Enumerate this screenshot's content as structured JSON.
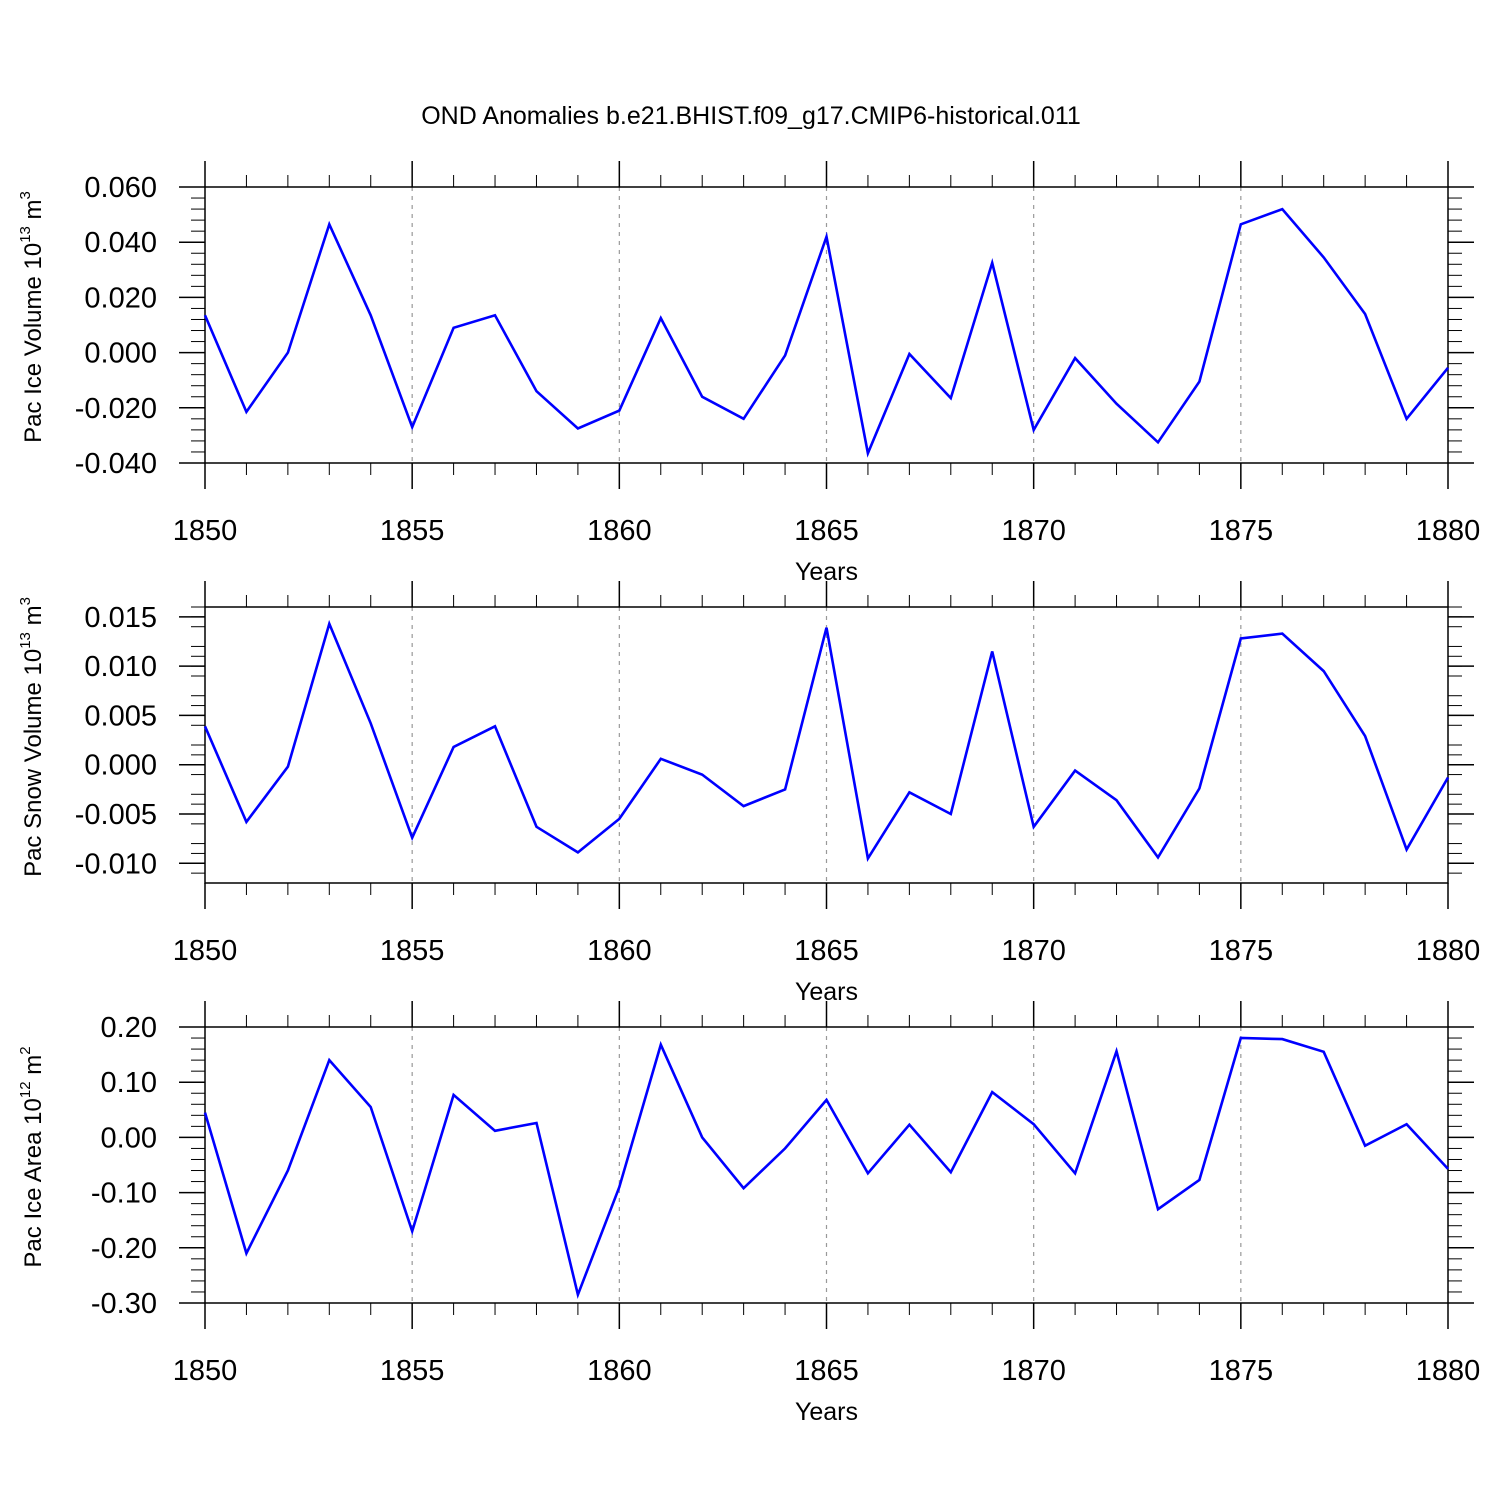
{
  "title": "OND Anomalies b.e21.BHIST.f09_g17.CMIP6-historical.011",
  "colors": {
    "series": "#0000ff",
    "axis": "#000000",
    "gridline": "#999999"
  },
  "chart_data": [
    {
      "type": "line",
      "ylabel": {
        "main": "Pac Ice Volume 10",
        "exp": "13",
        "unit": " m",
        "unit_exp": "3"
      },
      "xlabel": "Years",
      "xlim": [
        1850,
        1880
      ],
      "ylim": [
        -0.04,
        0.06
      ],
      "xticks": [
        1850,
        1855,
        1860,
        1865,
        1870,
        1875,
        1880
      ],
      "xtick_labels": [
        "1850",
        "1855",
        "1860",
        "1865",
        "1870",
        "1875",
        "1880"
      ],
      "yticks": [
        -0.04,
        -0.02,
        0.0,
        0.02,
        0.04,
        0.06
      ],
      "ytick_labels": [
        "-0.040",
        "-0.020",
        "0.000",
        "0.020",
        "0.040",
        "0.060"
      ],
      "vlines": [
        1855,
        1860,
        1865,
        1870,
        1875
      ],
      "x": [
        1850,
        1851,
        1852,
        1853,
        1854,
        1855,
        1856,
        1857,
        1858,
        1859,
        1860,
        1861,
        1862,
        1863,
        1864,
        1865,
        1866,
        1867,
        1868,
        1869,
        1870,
        1871,
        1872,
        1873,
        1874,
        1875,
        1876,
        1877,
        1878,
        1879,
        1880
      ],
      "values": [
        0.0135,
        -0.0215,
        0.0,
        0.0465,
        0.0135,
        -0.027,
        0.009,
        0.0135,
        -0.014,
        -0.0275,
        -0.021,
        0.0125,
        -0.016,
        -0.024,
        -0.001,
        0.042,
        -0.0365,
        -0.0005,
        -0.0165,
        0.0325,
        -0.028,
        -0.002,
        -0.0185,
        -0.0325,
        -0.0105,
        0.0465,
        0.052,
        0.0345,
        0.014,
        -0.024,
        -0.0055
      ]
    },
    {
      "type": "line",
      "ylabel": {
        "main": "Pac Snow Volume 10",
        "exp": "13",
        "unit": " m",
        "unit_exp": "3"
      },
      "xlabel": "Years",
      "xlim": [
        1850,
        1880
      ],
      "ylim": [
        -0.012,
        0.016
      ],
      "xticks": [
        1850,
        1855,
        1860,
        1865,
        1870,
        1875,
        1880
      ],
      "xtick_labels": [
        "1850",
        "1855",
        "1860",
        "1865",
        "1870",
        "1875",
        "1880"
      ],
      "yticks": [
        -0.01,
        -0.005,
        0.0,
        0.005,
        0.01,
        0.015
      ],
      "ytick_labels": [
        "-0.010",
        "-0.005",
        "0.000",
        "0.005",
        "0.010",
        "0.015"
      ],
      "vlines": [
        1855,
        1860,
        1865,
        1870,
        1875
      ],
      "x": [
        1850,
        1851,
        1852,
        1853,
        1854,
        1855,
        1856,
        1857,
        1858,
        1859,
        1860,
        1861,
        1862,
        1863,
        1864,
        1865,
        1866,
        1867,
        1868,
        1869,
        1870,
        1871,
        1872,
        1873,
        1874,
        1875,
        1876,
        1877,
        1878,
        1879,
        1880
      ],
      "values": [
        0.0039,
        -0.0058,
        -0.0002,
        0.0143,
        0.0042,
        -0.0074,
        0.0018,
        0.0039,
        -0.0063,
        -0.0089,
        -0.0055,
        0.0006,
        -0.001,
        -0.0042,
        -0.0025,
        0.0139,
        -0.0095,
        -0.0028,
        -0.005,
        0.0115,
        -0.0063,
        -0.0006,
        -0.0036,
        -0.0094,
        -0.0024,
        0.0128,
        0.0133,
        0.0095,
        0.0029,
        -0.0086,
        -0.0013
      ]
    },
    {
      "type": "line",
      "ylabel": {
        "main": "Pac Ice Area 10",
        "exp": "12",
        "unit": " m",
        "unit_exp": "2"
      },
      "xlabel": "Years",
      "xlim": [
        1850,
        1880
      ],
      "ylim": [
        -0.3,
        0.2
      ],
      "xticks": [
        1850,
        1855,
        1860,
        1865,
        1870,
        1875,
        1880
      ],
      "xtick_labels": [
        "1850",
        "1855",
        "1860",
        "1865",
        "1870",
        "1875",
        "1880"
      ],
      "yticks": [
        -0.3,
        -0.2,
        -0.1,
        0.0,
        0.1,
        0.2
      ],
      "ytick_labels": [
        "-0.30",
        "-0.20",
        "-0.10",
        "0.00",
        "0.10",
        "0.20"
      ],
      "vlines": [
        1855,
        1860,
        1865,
        1870,
        1875
      ],
      "x": [
        1850,
        1851,
        1852,
        1853,
        1854,
        1855,
        1856,
        1857,
        1858,
        1859,
        1860,
        1861,
        1862,
        1863,
        1864,
        1865,
        1866,
        1867,
        1868,
        1869,
        1870,
        1871,
        1872,
        1873,
        1874,
        1875,
        1876,
        1877,
        1878,
        1879,
        1880
      ],
      "values": [
        0.045,
        -0.21,
        -0.06,
        0.14,
        0.055,
        -0.17,
        0.077,
        0.012,
        0.026,
        -0.285,
        -0.09,
        0.168,
        0.0,
        -0.092,
        -0.02,
        0.068,
        -0.065,
        0.023,
        -0.063,
        0.082,
        0.024,
        -0.065,
        0.156,
        -0.13,
        -0.077,
        0.18,
        0.178,
        0.155,
        -0.015,
        0.024,
        -0.057
      ]
    }
  ]
}
